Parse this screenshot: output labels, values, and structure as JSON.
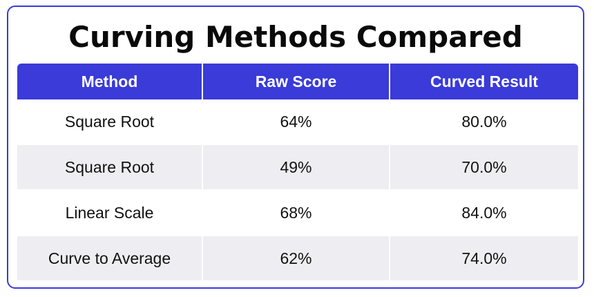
{
  "chart_data": {
    "type": "table",
    "title": "Curving Methods Compared",
    "columns": [
      "Method",
      "Raw Score",
      "Curved Result"
    ],
    "rows": [
      [
        "Square Root",
        "64%",
        "80.0%"
      ],
      [
        "Square Root",
        "49%",
        "70.0%"
      ],
      [
        "Linear Scale",
        "68%",
        "84.0%"
      ],
      [
        "Curve to Average",
        "62%",
        "74.0%"
      ]
    ]
  },
  "colors": {
    "header_bg": "#3a3bd8",
    "stripe": "#eeeef2",
    "border": "#3a3bd8"
  }
}
